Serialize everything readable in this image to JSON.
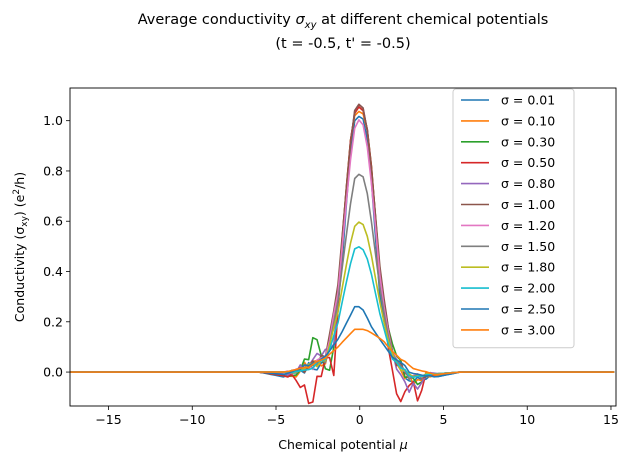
{
  "chart_data": {
    "type": "line",
    "title_line1_prefix": "Average conductivity ",
    "title_line1_symbol": "σ",
    "title_line1_sub": "xy",
    "title_line1_suffix": " at different chemical potentials",
    "title_line2": "(t = -0.5, t' = -0.5)",
    "xlabel_prefix": "Chemical potential ",
    "xlabel_symbol": "μ",
    "ylabel": "Conductivity (σ",
    "ylabel_sub": "xy",
    "ylabel_mid": ") (e",
    "ylabel_sup": "2",
    "ylabel_end": "/h)",
    "xlim": [
      -17.3,
      15.3
    ],
    "ylim": [
      -0.135,
      1.13
    ],
    "xticks": [
      -15,
      -10,
      -5,
      0,
      5,
      10,
      15
    ],
    "yticks": [
      0.0,
      0.2,
      0.4,
      0.6,
      0.8,
      1.0
    ],
    "xtick_labels": [
      "−15",
      "−10",
      "−5",
      "0",
      "5",
      "10",
      "15"
    ],
    "ytick_labels": [
      "0.0",
      "0.2",
      "0.4",
      "0.6",
      "0.8",
      "1.0"
    ],
    "legend_position": "top-right",
    "series": [
      {
        "name": "σ = 0.01",
        "color": "#1f77b4",
        "sigma": 0.01,
        "peak": 1.02,
        "width": 0.7,
        "noise": 0.06,
        "x": [
          -17.3,
          -6,
          -4.5,
          -3,
          -2,
          -1.2,
          -0.6,
          -0.3,
          0,
          0.3,
          0.6,
          1.2,
          2,
          3,
          4.5,
          6,
          15.3
        ],
        "y": [
          0,
          0,
          -0.02,
          0.02,
          0.05,
          0.3,
          0.85,
          1.0,
          1.02,
          1.0,
          0.85,
          0.3,
          0.05,
          -0.02,
          -0.02,
          0,
          0
        ]
      },
      {
        "name": "σ = 0.10",
        "color": "#ff7f0e",
        "sigma": 0.1,
        "peak": 1.04,
        "width": 0.7,
        "noise": 0.06,
        "x": [
          -17.3,
          -6,
          -4,
          -3,
          -2,
          -1.2,
          -0.6,
          -0.3,
          0,
          0.3,
          0.6,
          1.2,
          2,
          3,
          4,
          6,
          15.3
        ],
        "y": [
          0,
          0,
          -0.02,
          0.04,
          0.03,
          0.35,
          0.9,
          1.02,
          1.04,
          1.02,
          0.9,
          0.35,
          0.05,
          -0.03,
          -0.02,
          0,
          0
        ]
      },
      {
        "name": "σ = 0.30",
        "color": "#2ca02c",
        "sigma": 0.3,
        "peak": 1.06,
        "width": 0.7,
        "noise": 0.08,
        "x": [
          -17.3,
          -6,
          -4,
          -3.2,
          -2.5,
          -2,
          -1.5,
          -1.2,
          -0.6,
          -0.3,
          0,
          0.3,
          0.6,
          1.2,
          1.8,
          2.5,
          3.2,
          4,
          6,
          15.3
        ],
        "y": [
          0,
          0,
          -0.02,
          0.05,
          0.15,
          -0.02,
          0.1,
          0.4,
          0.9,
          1.03,
          1.06,
          1.03,
          0.9,
          0.4,
          0.14,
          0.02,
          -0.05,
          -0.01,
          0,
          0
        ]
      },
      {
        "name": "σ = 0.50",
        "color": "#d62728",
        "sigma": 0.5,
        "peak": 1.06,
        "width": 0.7,
        "noise": 0.1,
        "x": [
          -17.3,
          -6,
          -4,
          -3.3,
          -3,
          -2.5,
          -2,
          -1.5,
          -1.2,
          -0.6,
          -0.3,
          0,
          0.3,
          0.6,
          1.2,
          1.8,
          2.3,
          3,
          3.4,
          4,
          6,
          15.3
        ],
        "y": [
          0,
          0,
          -0.02,
          -0.05,
          -0.12,
          -0.05,
          0.1,
          -0.02,
          0.4,
          0.9,
          1.03,
          1.06,
          1.03,
          0.9,
          0.4,
          0.05,
          -0.1,
          -0.03,
          -0.1,
          -0.01,
          0,
          0
        ]
      },
      {
        "name": "σ = 0.80",
        "color": "#9467bd",
        "sigma": 0.8,
        "peak": 1.07,
        "width": 0.7,
        "noise": 0.08,
        "x": [
          -17.3,
          -6,
          -4,
          -3,
          -2.2,
          -1.5,
          -1.2,
          -0.6,
          -0.3,
          0,
          0.3,
          0.6,
          1.2,
          1.8,
          2.5,
          3.2,
          4,
          6,
          15.3
        ],
        "y": [
          0,
          0,
          -0.01,
          0.03,
          0.1,
          0.1,
          0.38,
          0.88,
          1.04,
          1.07,
          1.04,
          0.88,
          0.38,
          0.1,
          -0.02,
          -0.06,
          -0.01,
          0,
          0
        ]
      },
      {
        "name": "σ = 1.00",
        "color": "#8c564b",
        "sigma": 1.0,
        "peak": 1.07,
        "width": 0.72,
        "noise": 0.05,
        "x": [
          -17.3,
          -6,
          -4,
          -3,
          -2,
          -1.3,
          -0.6,
          -0.3,
          0,
          0.3,
          0.6,
          1.3,
          2,
          3,
          4,
          6,
          15.3
        ],
        "y": [
          0,
          0,
          0,
          0.02,
          0.06,
          0.35,
          0.88,
          1.04,
          1.07,
          1.04,
          0.88,
          0.35,
          0.06,
          -0.03,
          -0.01,
          0,
          0
        ]
      },
      {
        "name": "σ = 1.20",
        "color": "#e377c2",
        "sigma": 1.2,
        "peak": 1.01,
        "width": 0.74,
        "noise": 0.05,
        "x": [
          -17.3,
          -6,
          -4,
          -3,
          -2,
          -1.3,
          -0.6,
          -0.3,
          0,
          0.3,
          0.6,
          1.3,
          2,
          3,
          4,
          6,
          15.3
        ],
        "y": [
          0,
          0,
          0,
          0.02,
          0.05,
          0.32,
          0.82,
          0.97,
          1.01,
          0.97,
          0.82,
          0.32,
          0.05,
          -0.02,
          -0.01,
          0,
          0
        ]
      },
      {
        "name": "σ = 1.50",
        "color": "#7f7f7f",
        "sigma": 1.5,
        "peak": 0.79,
        "width": 0.8,
        "noise": 0.04,
        "x": [
          -17.3,
          -6,
          -4,
          -3,
          -2,
          -1.3,
          -0.6,
          -0.3,
          0,
          0.3,
          0.6,
          1.3,
          2,
          3,
          4,
          6,
          15.3
        ],
        "y": [
          0,
          0,
          0,
          0.02,
          0.05,
          0.28,
          0.65,
          0.77,
          0.79,
          0.77,
          0.65,
          0.28,
          0.05,
          -0.02,
          -0.01,
          0,
          0
        ]
      },
      {
        "name": "σ = 1.80",
        "color": "#bcbd22",
        "sigma": 1.8,
        "peak": 0.6,
        "width": 0.85,
        "noise": 0.03,
        "x": [
          -17.3,
          -6,
          -4,
          -3,
          -2,
          -1.3,
          -0.6,
          -0.3,
          0,
          0.3,
          0.6,
          1.3,
          2,
          3,
          4,
          6,
          15.3
        ],
        "y": [
          0,
          0,
          0,
          0.02,
          0.05,
          0.24,
          0.5,
          0.58,
          0.6,
          0.58,
          0.5,
          0.24,
          0.05,
          -0.02,
          -0.01,
          0,
          0
        ]
      },
      {
        "name": "σ = 2.00",
        "color": "#17becf",
        "sigma": 2.0,
        "peak": 0.5,
        "width": 0.9,
        "noise": 0.03,
        "x": [
          -17.3,
          -6,
          -4,
          -3,
          -2,
          -1.3,
          -0.6,
          -0.3,
          0,
          0.3,
          0.6,
          1.3,
          2,
          3,
          4,
          6,
          15.3
        ],
        "y": [
          0,
          0,
          0,
          0.02,
          0.05,
          0.2,
          0.42,
          0.49,
          0.5,
          0.48,
          0.42,
          0.2,
          0.05,
          -0.02,
          -0.01,
          0,
          0
        ]
      },
      {
        "name": "σ = 2.50",
        "color": "#1f77b4",
        "sigma": 2.5,
        "peak": 0.26,
        "width": 1.1,
        "noise": 0.02,
        "x": [
          -17.3,
          -6,
          -4.5,
          -3,
          -2,
          -1.3,
          -0.6,
          -0.3,
          0,
          0.3,
          0.6,
          1.3,
          2,
          3,
          4.5,
          6,
          15.3
        ],
        "y": [
          0,
          0,
          -0.01,
          0.03,
          0.06,
          0.13,
          0.22,
          0.26,
          0.26,
          0.24,
          0.19,
          0.12,
          0.06,
          0,
          -0.02,
          0,
          0
        ]
      },
      {
        "name": "σ = 3.00",
        "color": "#ff7f0e",
        "sigma": 3.0,
        "peak": 0.17,
        "width": 1.6,
        "noise": 0.01,
        "x": [
          -17.3,
          -6,
          -4.5,
          -3,
          -2,
          -1.3,
          -0.6,
          -0.3,
          0,
          0.3,
          0.6,
          1.3,
          2,
          3,
          4.5,
          6,
          15.3
        ],
        "y": [
          0,
          0,
          0,
          0.02,
          0.06,
          0.1,
          0.15,
          0.17,
          0.17,
          0.17,
          0.16,
          0.13,
          0.08,
          0.02,
          -0.01,
          0,
          0
        ]
      }
    ]
  }
}
